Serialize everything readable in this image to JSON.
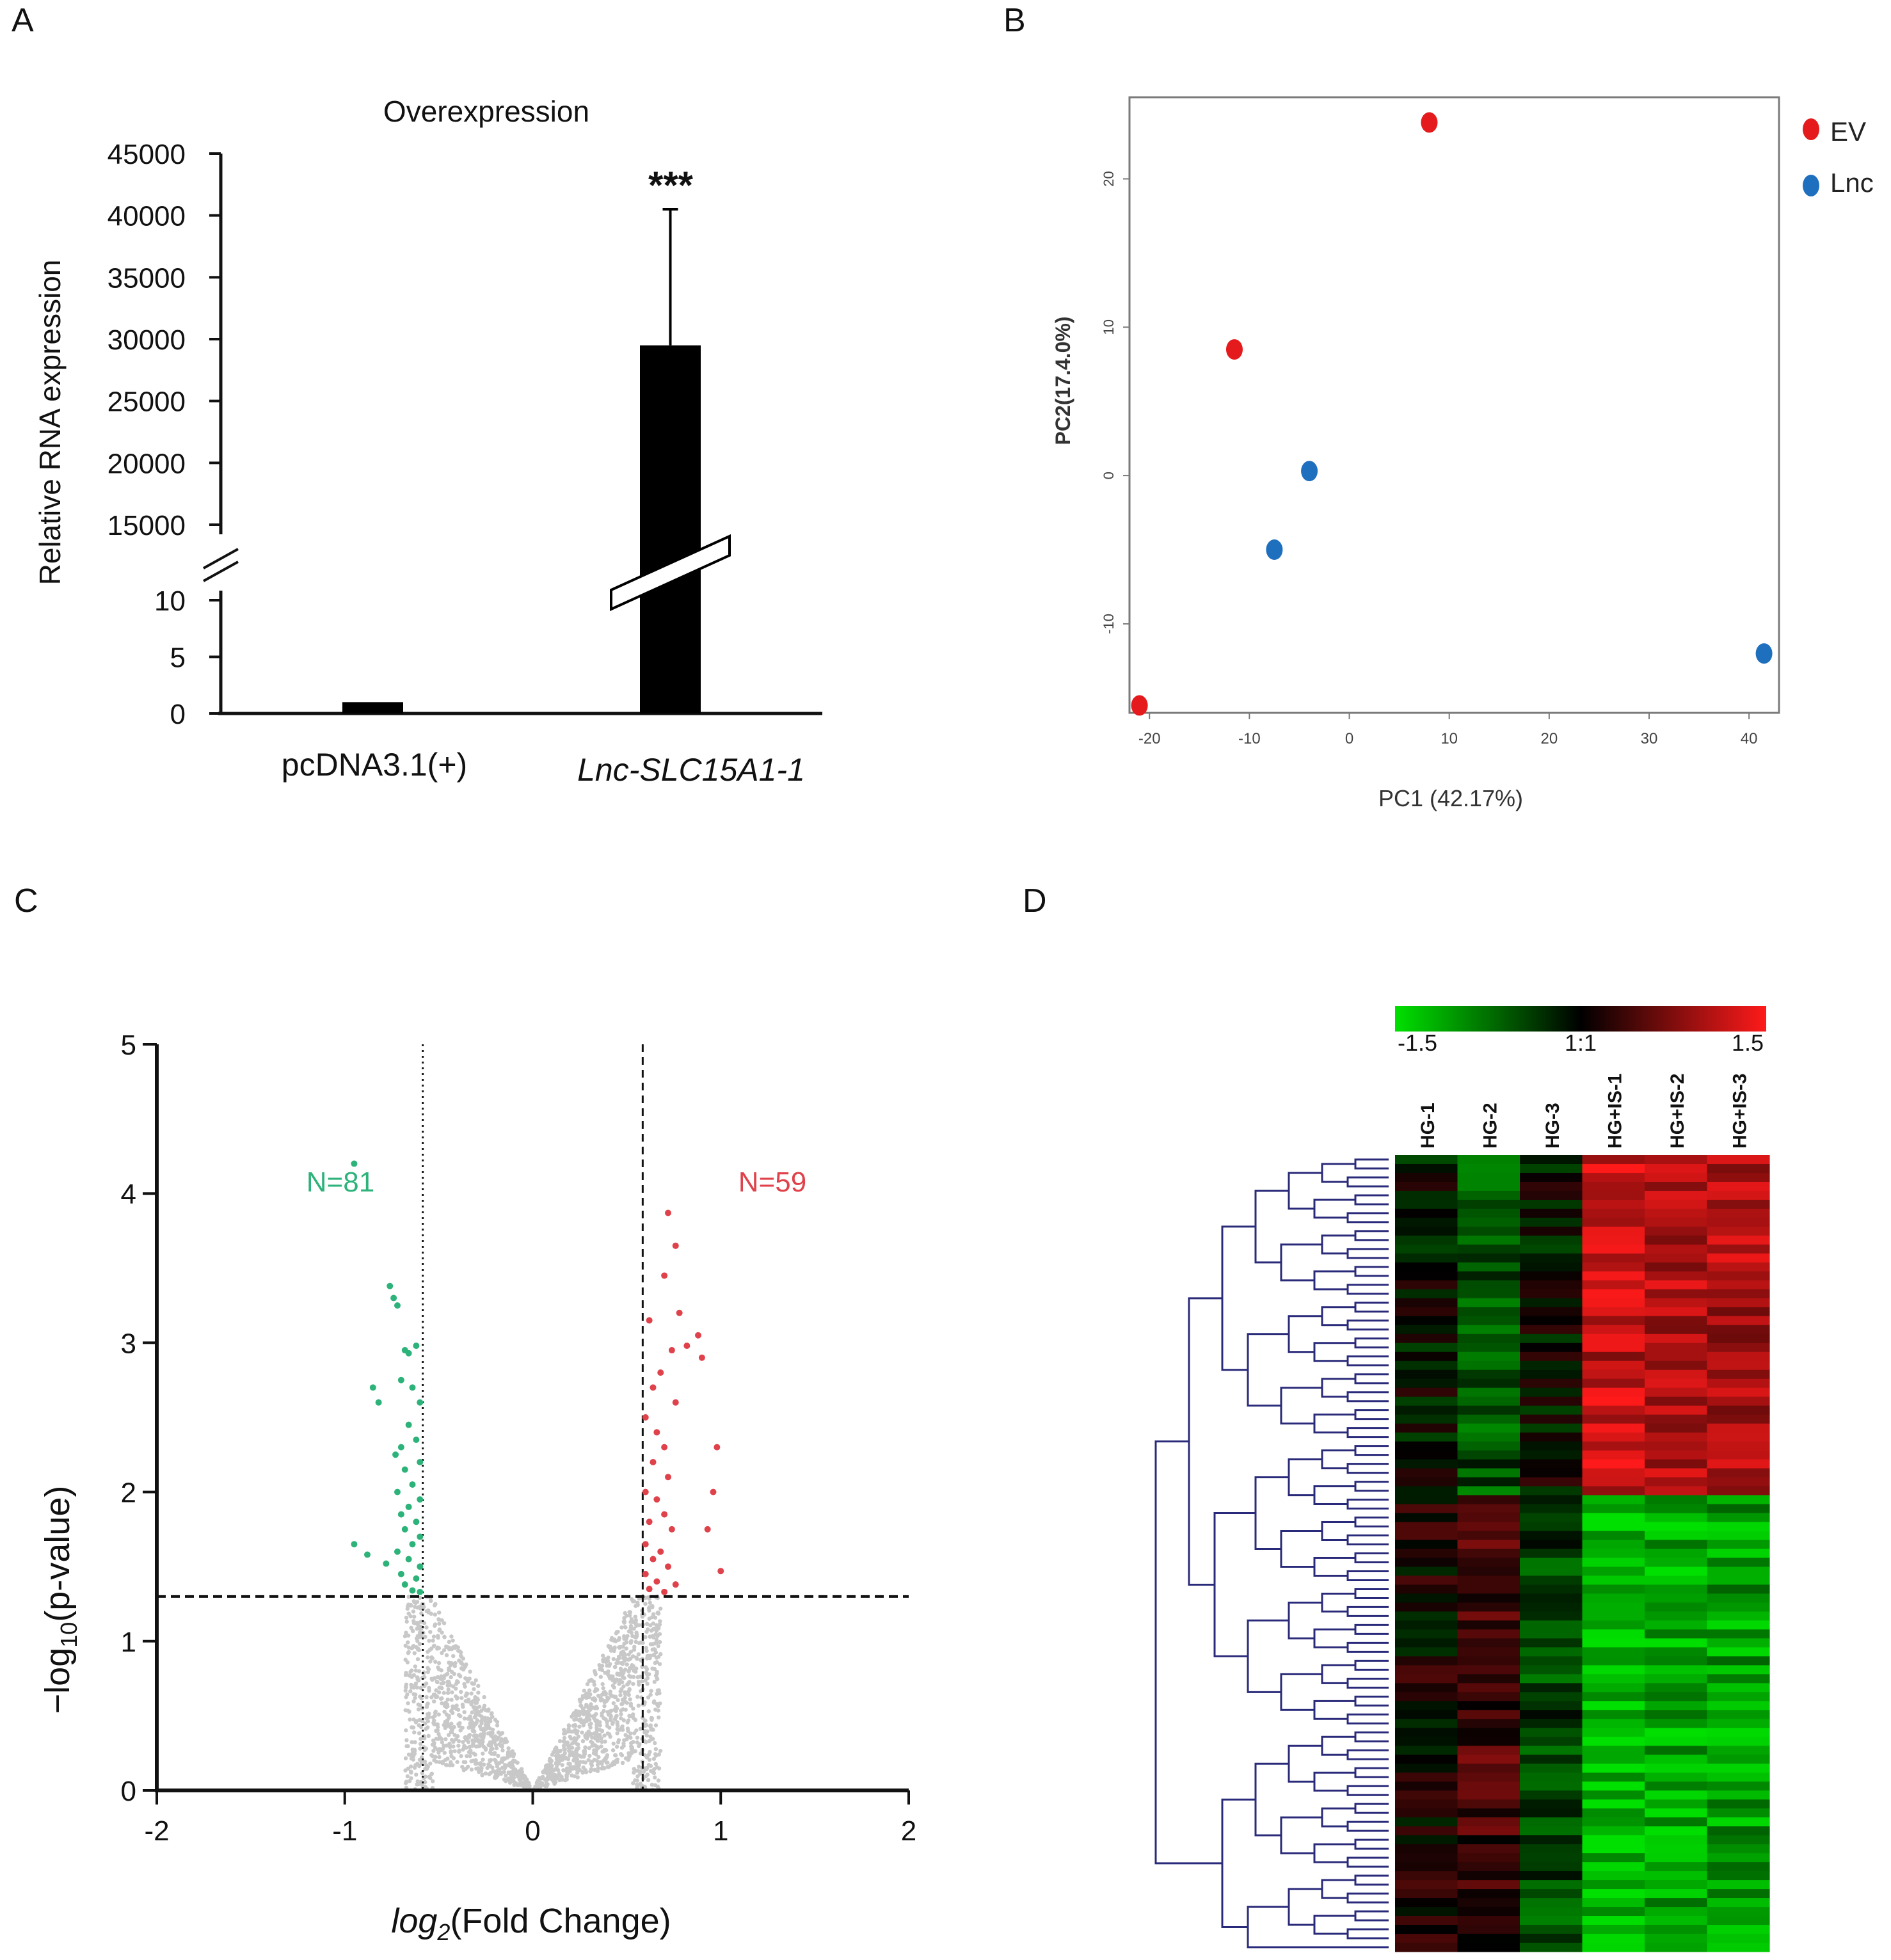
{
  "panel_labels": {
    "a": "A",
    "b": "B",
    "c": "C",
    "d": "D"
  },
  "colors": {
    "ev": "#e41a1c",
    "lnc": "#1f6fbf",
    "down": "#2db37a",
    "up": "#e0424b",
    "ns": "#c8c8c8",
    "heat_low": "#00e000",
    "heat_mid": "#000000",
    "heat_high": "#ff1a1a",
    "dendro": "#2a2a7a"
  },
  "chart_data": [
    {
      "id": "A",
      "type": "bar",
      "title": "Overexpression",
      "ylabel": "Relative RNA expression",
      "categories": [
        "pcDNA3.1(+)",
        "Lnc-SLC15A1-1"
      ],
      "values": [
        1,
        29500
      ],
      "errors": [
        0.1,
        11000
      ],
      "significance": [
        "",
        "***"
      ],
      "axis_break": true,
      "lower_ticks": [
        "0",
        "5",
        "10"
      ],
      "upper_ticks": [
        "15000",
        "20000",
        "25000",
        "30000",
        "35000",
        "40000",
        "45000"
      ],
      "lower_ylim": [
        0,
        10
      ],
      "upper_ylim": [
        15000,
        45000
      ]
    },
    {
      "id": "B",
      "type": "scatter",
      "xlabel": "PC1 (42.17%)",
      "ylabel": "PC2(17.4.0%)",
      "xticks": [
        "-20",
        "-10",
        "0",
        "10",
        "20",
        "30",
        "40"
      ],
      "yticks": [
        "-10",
        "0",
        "10",
        "20"
      ],
      "xlim": [
        -22,
        43
      ],
      "ylim": [
        -16,
        25.5
      ],
      "legend": [
        {
          "name": "EV"
        },
        {
          "name": "Lnc"
        }
      ],
      "series": [
        {
          "name": "EV",
          "points": [
            [
              -21,
              -15.5
            ],
            [
              -11.5,
              8.5
            ],
            [
              8,
              23.8
            ]
          ]
        },
        {
          "name": "Lnc",
          "points": [
            [
              -4,
              0.3
            ],
            [
              -7.5,
              -5
            ]
          ]
        },
        {
          "name": "Lnc",
          "points": [
            [
              41.5,
              -12
            ]
          ]
        }
      ]
    },
    {
      "id": "C",
      "type": "scatter",
      "subtype": "volcano",
      "xlabel_main": "log",
      "xlabel_sub": "2",
      "xlabel_tail": "(Fold Change)",
      "ylabel_main": "−log",
      "ylabel_sub": "10",
      "ylabel_tail": "(p-value)",
      "xticks": [
        "-2",
        "-1",
        "0",
        "1",
        "2"
      ],
      "yticks": [
        "0",
        "1",
        "2",
        "3",
        "4",
        "5"
      ],
      "xlim": [
        -2,
        2
      ],
      "ylim": [
        0,
        5
      ],
      "fc_threshold": 0.585,
      "p_threshold": 1.3,
      "annotations": {
        "down": "N=81",
        "up": "N=59"
      },
      "down_points": [
        [
          -0.95,
          4.2
        ],
        [
          -0.76,
          3.38
        ],
        [
          -0.74,
          3.3
        ],
        [
          -0.72,
          3.25
        ],
        [
          -0.68,
          2.95
        ],
        [
          -0.66,
          2.93
        ],
        [
          -0.62,
          2.98
        ],
        [
          -0.85,
          2.7
        ],
        [
          -0.82,
          2.6
        ],
        [
          -0.7,
          2.75
        ],
        [
          -0.64,
          2.7
        ],
        [
          -0.6,
          2.6
        ],
        [
          -0.66,
          2.45
        ],
        [
          -0.62,
          2.35
        ],
        [
          -0.7,
          2.3
        ],
        [
          -0.73,
          2.25
        ],
        [
          -0.6,
          2.2
        ],
        [
          -0.68,
          2.15
        ],
        [
          -0.64,
          2.05
        ],
        [
          -0.72,
          2.0
        ],
        [
          -0.6,
          1.95
        ],
        [
          -0.66,
          1.9
        ],
        [
          -0.7,
          1.85
        ],
        [
          -0.62,
          1.8
        ],
        [
          -0.68,
          1.75
        ],
        [
          -0.6,
          1.7
        ],
        [
          -0.64,
          1.65
        ],
        [
          -0.72,
          1.6
        ],
        [
          -0.66,
          1.55
        ],
        [
          -0.6,
          1.5
        ],
        [
          -0.7,
          1.45
        ],
        [
          -0.62,
          1.42
        ],
        [
          -0.68,
          1.38
        ],
        [
          -0.64,
          1.34
        ],
        [
          -0.95,
          1.65
        ],
        [
          -0.88,
          1.58
        ],
        [
          -0.78,
          1.52
        ],
        [
          -0.6,
          1.33
        ]
      ],
      "up_points": [
        [
          0.72,
          3.87
        ],
        [
          0.76,
          3.65
        ],
        [
          0.7,
          3.45
        ],
        [
          0.78,
          3.2
        ],
        [
          0.62,
          3.15
        ],
        [
          0.88,
          3.05
        ],
        [
          0.82,
          2.98
        ],
        [
          0.74,
          2.95
        ],
        [
          0.9,
          2.9
        ],
        [
          0.68,
          2.8
        ],
        [
          0.64,
          2.7
        ],
        [
          0.76,
          2.6
        ],
        [
          0.6,
          2.5
        ],
        [
          0.66,
          2.4
        ],
        [
          0.7,
          2.3
        ],
        [
          0.98,
          2.3
        ],
        [
          0.64,
          2.2
        ],
        [
          0.72,
          2.1
        ],
        [
          0.6,
          2.0
        ],
        [
          0.66,
          1.95
        ],
        [
          0.96,
          2.0
        ],
        [
          0.7,
          1.85
        ],
        [
          0.62,
          1.8
        ],
        [
          0.74,
          1.75
        ],
        [
          0.93,
          1.75
        ],
        [
          0.6,
          1.65
        ],
        [
          0.68,
          1.6
        ],
        [
          0.64,
          1.55
        ],
        [
          0.72,
          1.5
        ],
        [
          1.0,
          1.47
        ],
        [
          0.6,
          1.45
        ],
        [
          0.66,
          1.4
        ],
        [
          0.76,
          1.38
        ],
        [
          0.62,
          1.35
        ],
        [
          0.7,
          1.33
        ]
      ]
    },
    {
      "id": "D",
      "type": "heatmap",
      "colorbar_ticks": [
        "-1.5",
        "1:1",
        "1.5"
      ],
      "columns": [
        "HG-1",
        "HG-2",
        "HG-3",
        "HG+IS-1",
        "HG+IS-2",
        "HG+IS-3"
      ],
      "n_rows": 89,
      "upregulated_rows": 38,
      "up_group_means": [
        -0.05,
        -0.35,
        -0.05,
        0.75,
        0.65,
        0.7
      ],
      "down_group_means": [
        0.05,
        0.25,
        -0.3,
        -0.85,
        -0.75,
        -0.7
      ]
    }
  ]
}
